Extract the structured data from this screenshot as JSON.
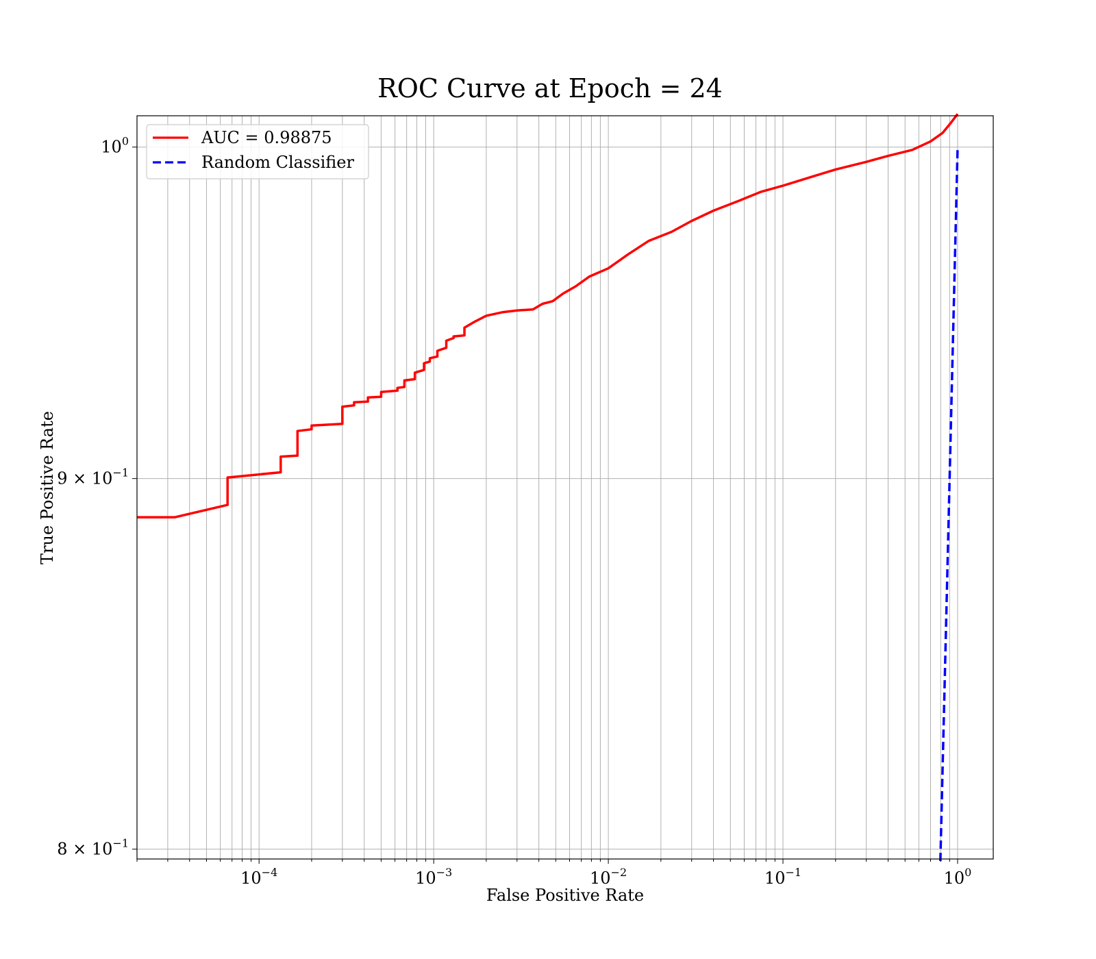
{
  "chart_data": {
    "type": "line",
    "title": "ROC Curve at Epoch = 24",
    "xlabel": "False Positive Rate",
    "ylabel": "True Positive Rate",
    "xscale": "log",
    "yscale": "log",
    "xlim": [
      2e-05,
      1.6
    ],
    "ylim": [
      0.7975,
      1.01
    ],
    "grid": "both major and minor",
    "legend_position": "top-left",
    "x_ticks": [
      {
        "value": 0.0001,
        "base": "10",
        "exp": "−4"
      },
      {
        "value": 0.001,
        "base": "10",
        "exp": "−3"
      },
      {
        "value": 0.01,
        "base": "10",
        "exp": "−2"
      },
      {
        "value": 0.1,
        "base": "10",
        "exp": "−1"
      },
      {
        "value": 1,
        "base": "10",
        "exp": "0"
      }
    ],
    "y_ticks": [
      {
        "value": 1.0,
        "base": "10",
        "exp": "0"
      },
      {
        "value": 0.9,
        "base": "9 × 10",
        "exp": "−1"
      },
      {
        "value": 0.8,
        "base": "8 × 10",
        "exp": "−1"
      }
    ],
    "series": [
      {
        "name": "AUC = 0.98875",
        "color": "#ff0000",
        "style": "solid",
        "x": [
          2e-05,
          3.3e-05,
          6.6e-05,
          6.6e-05,
          0.000133,
          0.000133,
          0.000166,
          0.000166,
          0.0002,
          0.0002,
          0.0003,
          0.0003,
          0.00035,
          0.00035,
          0.00042,
          0.00042,
          0.0005,
          0.0005,
          0.00062,
          0.00062,
          0.00068,
          0.00068,
          0.00078,
          0.00078,
          0.00088,
          0.00088,
          0.00095,
          0.00095,
          0.00105,
          0.00105,
          0.00118,
          0.00118,
          0.0013,
          0.0013,
          0.0015,
          0.0015,
          0.0017,
          0.002,
          0.0025,
          0.003,
          0.0037,
          0.0042,
          0.0048,
          0.0055,
          0.0065,
          0.0078,
          0.01,
          0.013,
          0.017,
          0.023,
          0.03,
          0.04,
          0.055,
          0.075,
          0.1,
          0.15,
          0.2,
          0.3,
          0.4,
          0.55,
          0.7,
          0.82,
          0.92,
          1.0
        ],
        "y": [
          0.889,
          0.889,
          0.8925,
          0.9003,
          0.9018,
          0.9063,
          0.9066,
          0.9137,
          0.9142,
          0.9153,
          0.9158,
          0.9208,
          0.9212,
          0.9221,
          0.9223,
          0.9235,
          0.9237,
          0.9251,
          0.9255,
          0.9263,
          0.9266,
          0.9285,
          0.9289,
          0.9308,
          0.9316,
          0.9336,
          0.9341,
          0.9351,
          0.9356,
          0.9373,
          0.9382,
          0.9403,
          0.9411,
          0.9416,
          0.9419,
          0.9442,
          0.9459,
          0.9478,
          0.9489,
          0.9494,
          0.9497,
          0.9514,
          0.9522,
          0.9545,
          0.9567,
          0.9597,
          0.9622,
          0.9665,
          0.9706,
          0.9734,
          0.9768,
          0.98,
          0.9829,
          0.9859,
          0.9878,
          0.9908,
          0.9929,
          0.9953,
          0.9972,
          0.9991,
          1.0018,
          1.0045,
          1.0079,
          1.0106
        ]
      },
      {
        "name": "Random Classifier",
        "color": "#0000ff",
        "style": "dashed",
        "x": [
          0.797,
          1.0
        ],
        "y": [
          0.797,
          1.0
        ]
      }
    ]
  }
}
